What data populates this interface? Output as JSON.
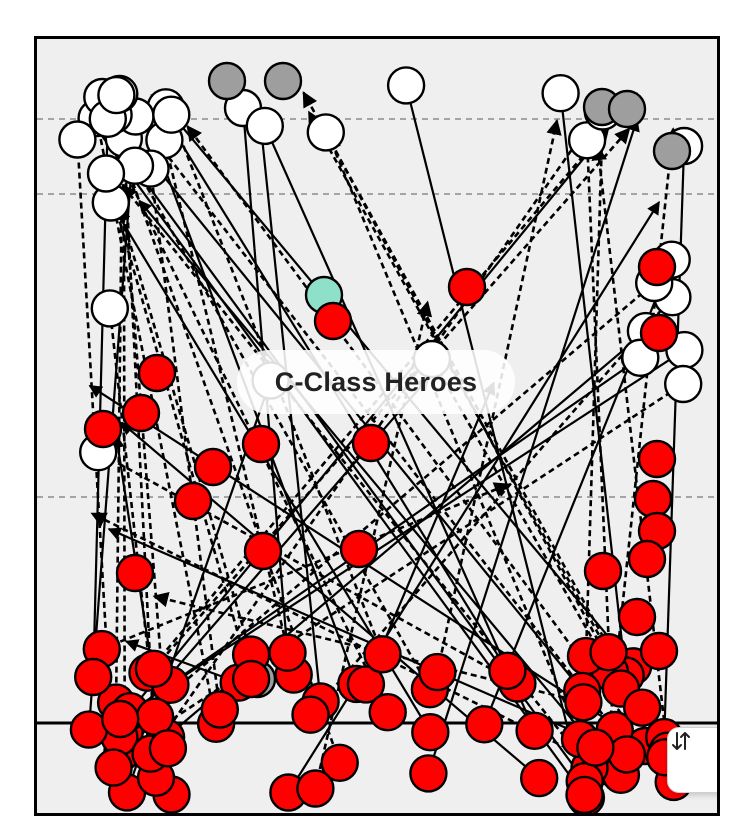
{
  "play_title": "C-Class Heroes",
  "controls": {
    "swap_icon": "swap-vertical-icon"
  },
  "colors": {
    "field": "#efefef",
    "route": "#000000",
    "player_red": "#ff0000",
    "player_open": "#ffffff",
    "player_gray": "#9e9e9e",
    "player_teal": "#8fe0c8"
  }
}
